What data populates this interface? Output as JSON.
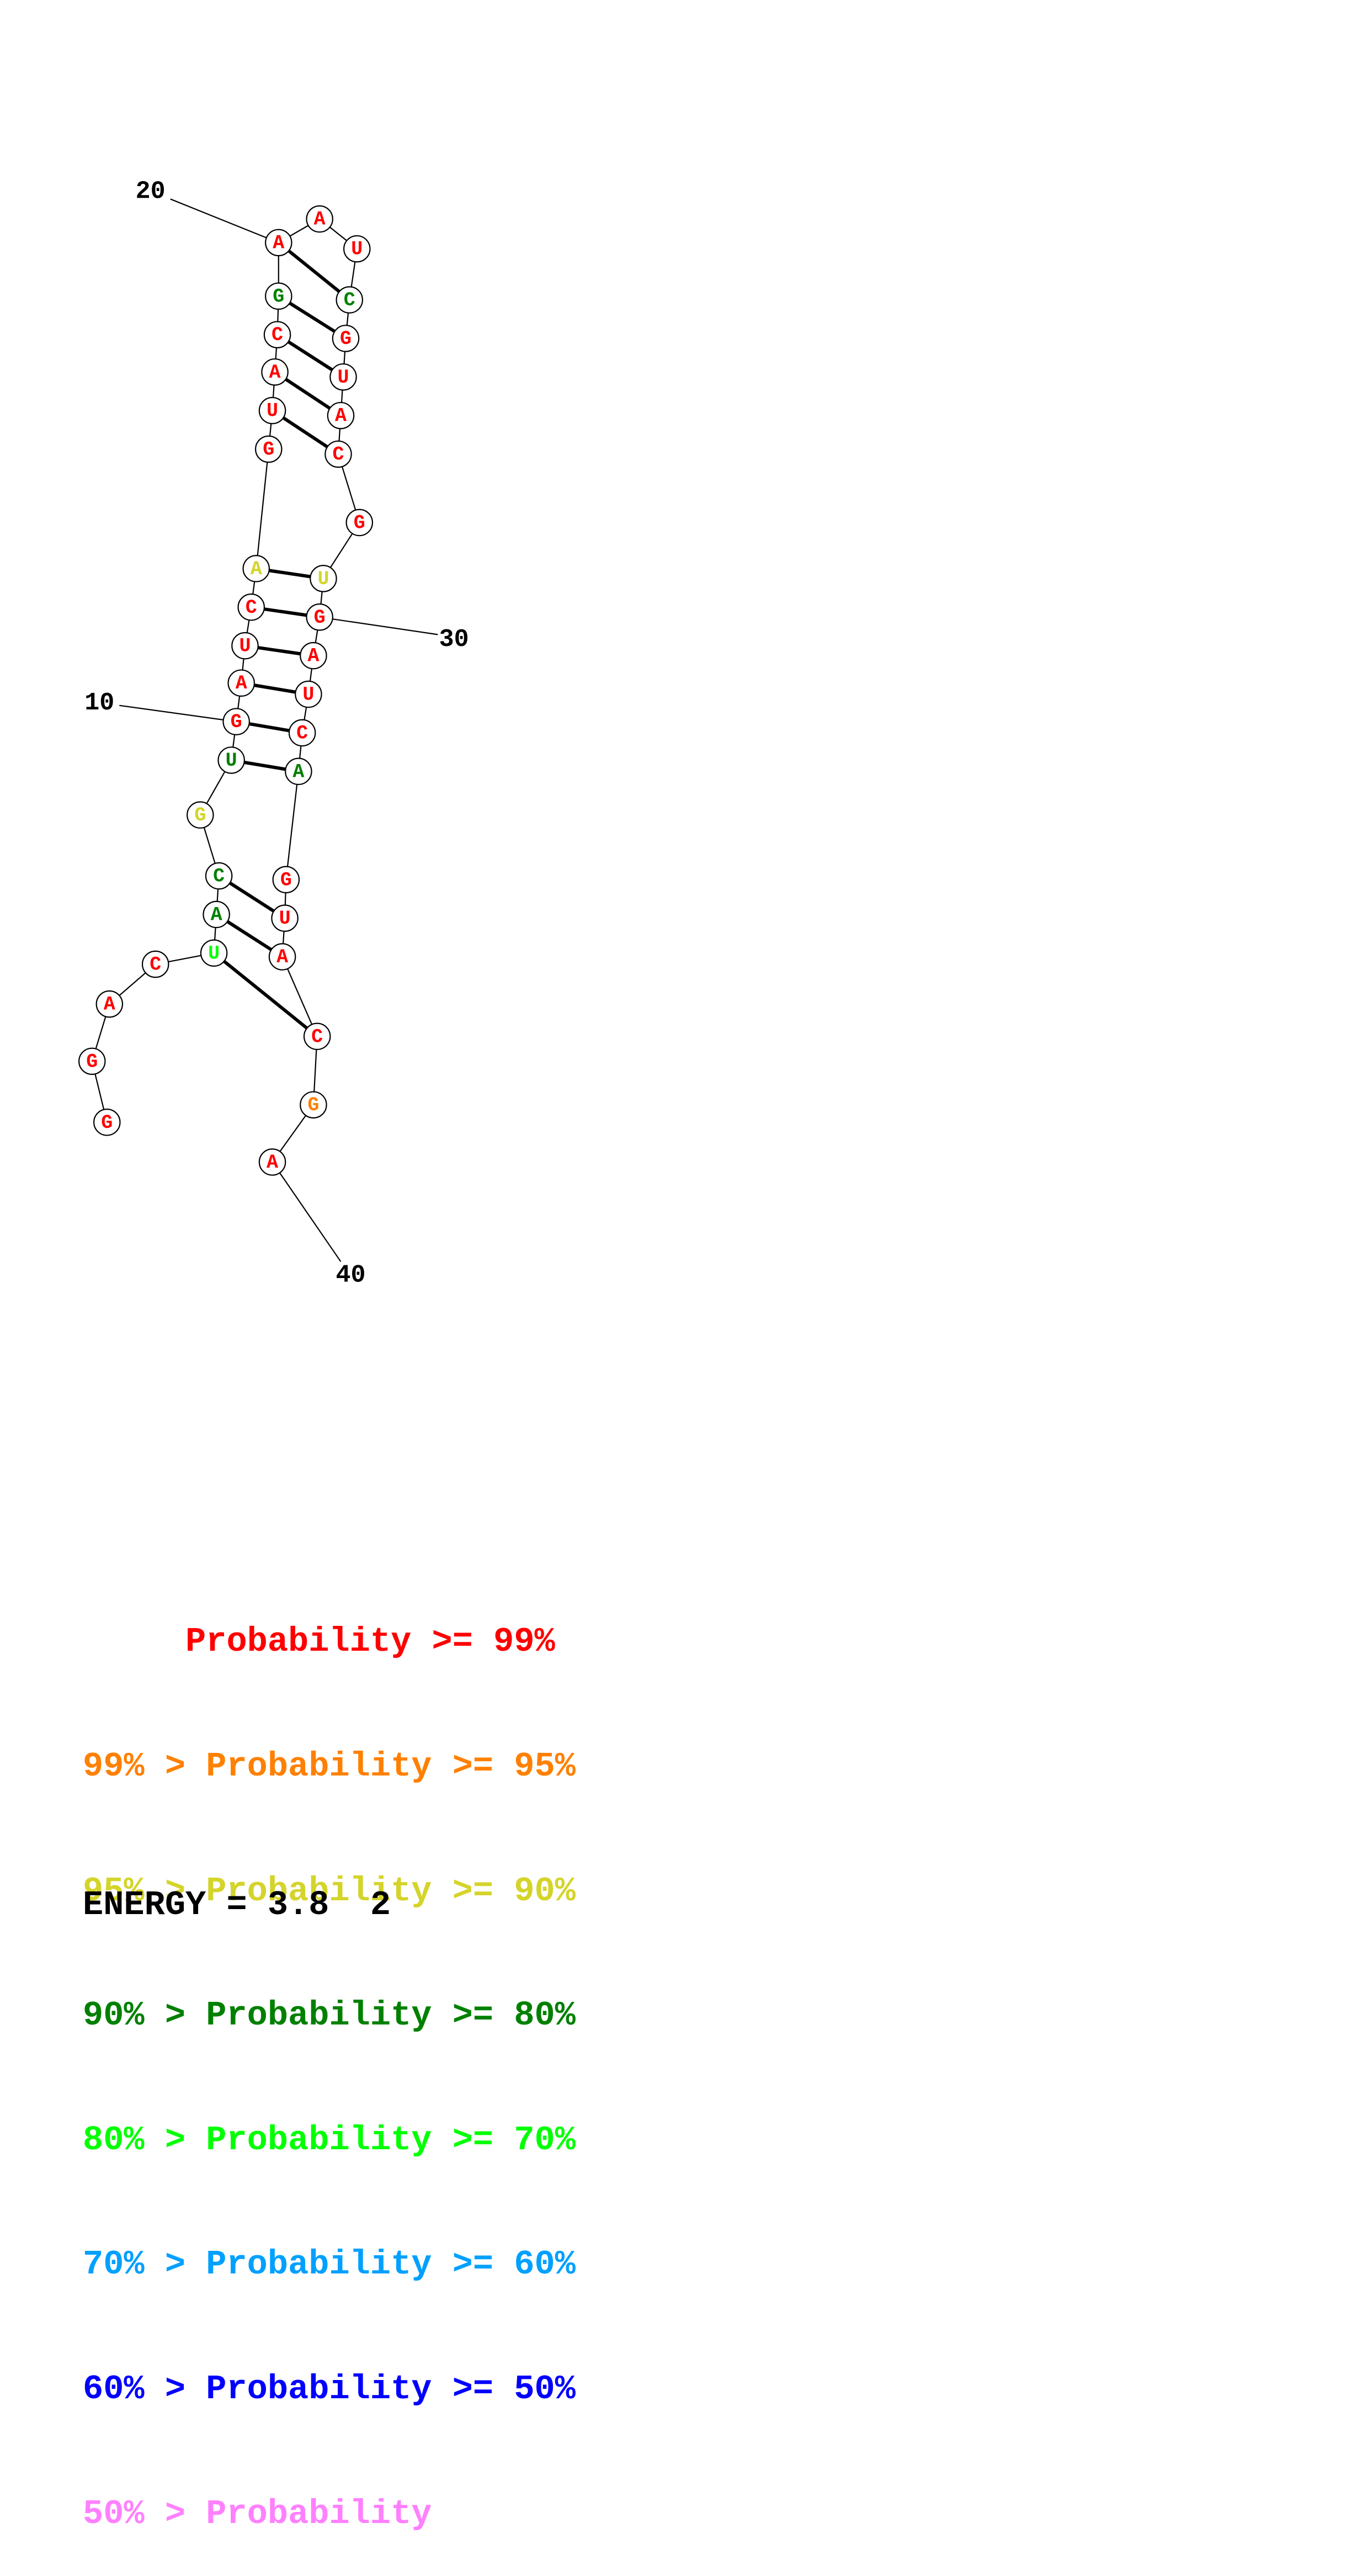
{
  "nucleotides": [
    "G",
    "G",
    "A",
    "C",
    "U",
    "A",
    "C",
    "G",
    "U",
    "G",
    "A",
    "U",
    "C",
    "A",
    "G",
    "U",
    "A",
    "C",
    "G",
    "A",
    "A",
    "U",
    "C",
    "G",
    "U",
    "A",
    "C",
    "G",
    "U",
    "G",
    "A",
    "U",
    "C",
    "A",
    "G",
    "U",
    "A",
    "C",
    "G",
    "A"
  ],
  "nucleotide_colors": [
    "red",
    "red",
    "red",
    "red",
    "lightgreen",
    "darkgreen",
    "darkgreen",
    "yellow",
    "darkgreen",
    "red",
    "red",
    "red",
    "red",
    "yellow",
    "red",
    "red",
    "red",
    "red",
    "darkgreen",
    "red",
    "red",
    "red",
    "darkgreen",
    "red",
    "red",
    "red",
    "red",
    "red",
    "yellow",
    "red",
    "red",
    "red",
    "red",
    "darkgreen",
    "red",
    "red",
    "red",
    "red",
    "orange",
    "red"
  ],
  "position_labels": [
    {
      "position": 10,
      "text": "10"
    },
    {
      "position": 20,
      "text": "20"
    },
    {
      "position": 30,
      "text": "30"
    },
    {
      "position": 40,
      "text": "40"
    }
  ],
  "base_pairs": [
    [
      5,
      38
    ],
    [
      6,
      37
    ],
    [
      7,
      36
    ],
    [
      9,
      34
    ],
    [
      10,
      33
    ],
    [
      11,
      32
    ],
    [
      12,
      31
    ],
    [
      13,
      30
    ],
    [
      14,
      29
    ],
    [
      16,
      27
    ],
    [
      17,
      26
    ],
    [
      18,
      25
    ],
    [
      19,
      24
    ],
    [
      20,
      23
    ]
  ],
  "palette": {
    "red": "#ff0000",
    "orange": "#ff8000",
    "yellow": "#d4d42a",
    "darkgreen": "#008000",
    "lightgreen": "#00ff00",
    "cyan": "#00a0ff",
    "blue": "#0000ff",
    "pink": "#ff80ff"
  },
  "legend": [
    {
      "text": "     Probability >= 99%",
      "color": "#ff0000"
    },
    {
      "text": "99% > Probability >= 95%",
      "color": "#ff8000"
    },
    {
      "text": "95% > Probability >= 90%",
      "color": "#d4d42a"
    },
    {
      "text": "90% > Probability >= 80%",
      "color": "#008000"
    },
    {
      "text": "80% > Probability >= 70%",
      "color": "#00ff00"
    },
    {
      "text": "70% > Probability >= 60%",
      "color": "#00a0ff"
    },
    {
      "text": "60% > Probability >= 50%",
      "color": "#0000ff"
    },
    {
      "text": "50% > Probability",
      "color": "#ff80ff"
    }
  ],
  "energy_text": "ENERGY = 3.8  2"
}
